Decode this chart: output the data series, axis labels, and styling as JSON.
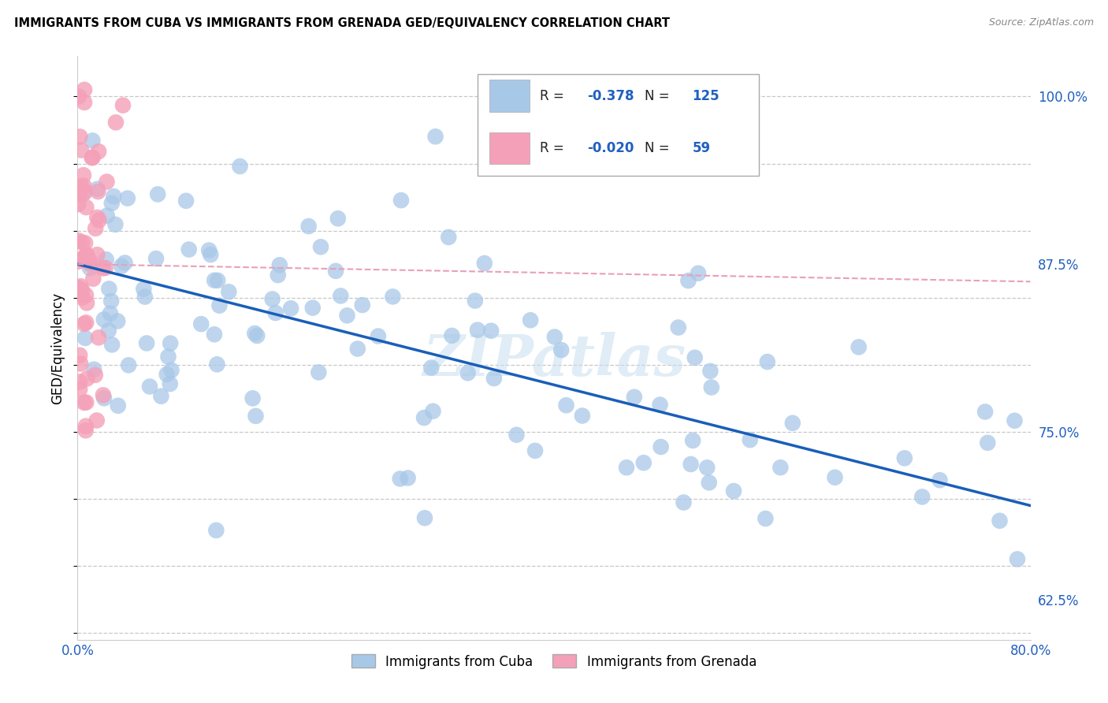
{
  "title": "IMMIGRANTS FROM CUBA VS IMMIGRANTS FROM GRENADA GED/EQUIVALENCY CORRELATION CHART",
  "source": "Source: ZipAtlas.com",
  "ylabel": "GED/Equivalency",
  "xmin": 0.0,
  "xmax": 0.8,
  "ymin": 0.595,
  "ymax": 1.03,
  "yticks": [
    0.625,
    0.75,
    0.875,
    1.0
  ],
  "ytick_labels": [
    "62.5%",
    "75.0%",
    "87.5%",
    "100.0%"
  ],
  "cuba_color": "#a8c8e8",
  "grenada_color": "#f4a0b8",
  "cuba_R": -0.378,
  "cuba_N": 125,
  "grenada_R": -0.02,
  "grenada_N": 59,
  "legend_label_cuba": "Immigrants from Cuba",
  "legend_label_grenada": "Immigrants from Grenada",
  "trendline_cuba_color": "#1a5eb8",
  "trendline_grenada_color": "#e8a0b8",
  "background_color": "#ffffff",
  "grid_color": "#bbbbbb",
  "cuba_trend_x0": 0.0,
  "cuba_trend_y0": 0.875,
  "cuba_trend_x1": 0.8,
  "cuba_trend_y1": 0.695,
  "grenada_trend_x0": 0.0,
  "grenada_trend_y0": 0.875,
  "grenada_trend_x1": 0.8,
  "grenada_trend_y1": 0.862
}
